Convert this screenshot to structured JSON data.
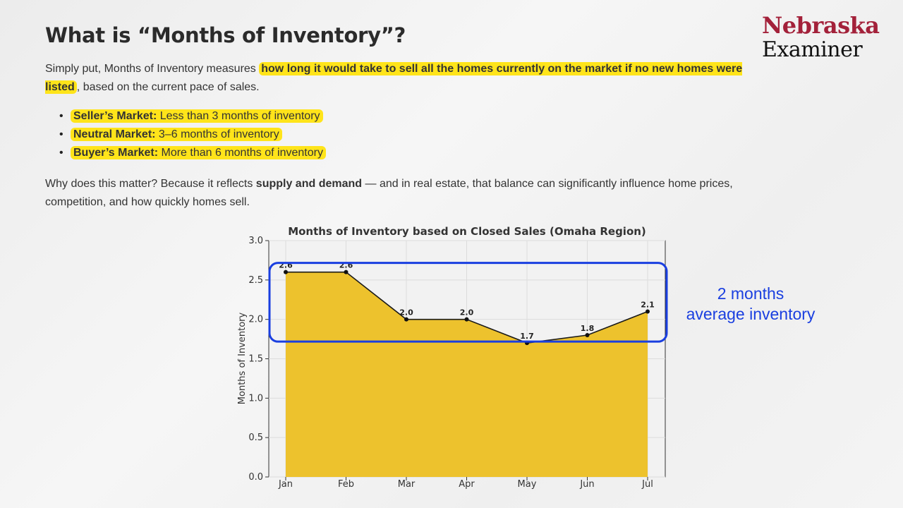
{
  "header": {
    "title": "What is “Months of Inventory”?",
    "logo_line1": "Nebraska",
    "logo_line2": "Examiner"
  },
  "intro": {
    "prefix": "Simply put, Months of Inventory measures ",
    "highlight": "how long it would take to sell all the homes currently on the market if no new homes were listed",
    "suffix": ", based on the current pace of sales."
  },
  "markets": [
    {
      "label": "Seller’s Market:",
      "desc": " Less than 3 months of inventory"
    },
    {
      "label": "Neutral Market:",
      "desc": " 3–6 months of inventory"
    },
    {
      "label": "Buyer’s Market:",
      "desc": " More than 6 months of inventory"
    }
  ],
  "why": {
    "prefix": "Why does this matter? Because it reflects ",
    "bold": "supply and demand",
    "suffix": " — and in real estate, that balance can significantly influence home prices, competition, and how quickly homes sell."
  },
  "callout": {
    "line1": "2 months",
    "line2": "average inventory",
    "range": [
      1.7,
      2.6
    ]
  },
  "colors": {
    "highlight": "#ffe41a",
    "area_fill": "#edc22d",
    "callout_blue": "#1a3fe0",
    "logo_red": "#a3213a"
  },
  "chart_data": {
    "type": "area",
    "title": "Months of Inventory based on Closed Sales (Omaha Region)",
    "xlabel": "",
    "ylabel": "Months of Inventory",
    "categories": [
      "Jan",
      "Feb",
      "Mar",
      "Apr",
      "May",
      "Jun",
      "Jul"
    ],
    "values": [
      2.6,
      2.6,
      2.0,
      2.0,
      1.7,
      1.8,
      2.1
    ],
    "data_labels": [
      "2.6",
      "2.6",
      "2.0",
      "2.0",
      "1.7",
      "1.8",
      "2.1"
    ],
    "ylim": [
      0,
      3.0
    ],
    "yticks": [
      "0.0",
      "0.5",
      "1.0",
      "1.5",
      "2.0",
      "2.5",
      "3.0"
    ],
    "grid": true,
    "legend": "none"
  }
}
